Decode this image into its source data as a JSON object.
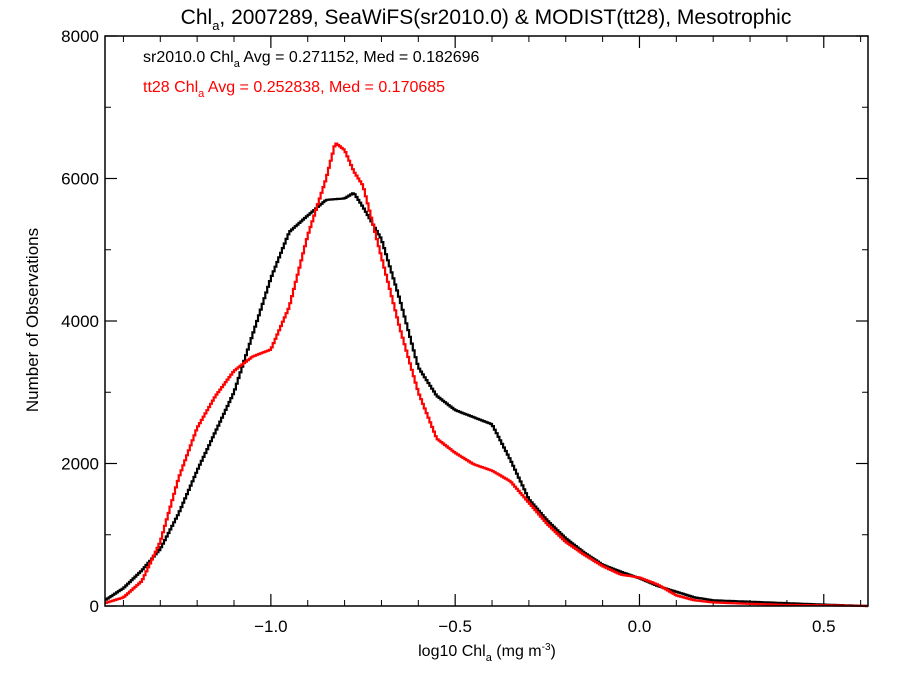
{
  "chart_data": {
    "type": "line",
    "title": {
      "prefix": "Chl",
      "prefix_sub": "a",
      "rest": ", 2007289, SeaWiFS(sr2010.0) & MODIST(tt28), Mesotrophic"
    },
    "xlabel": {
      "prefix": "log10 Chl",
      "sub": "a",
      "mid": " (mg m",
      "sup": "-3",
      "suffix": ")"
    },
    "ylabel": "Number of Observations",
    "xlim": [
      -1.45,
      0.62
    ],
    "ylim": [
      0,
      8000
    ],
    "x_ticks": [
      -1.0,
      -0.5,
      0.0,
      0.5
    ],
    "x_tick_labels": [
      "−1.0",
      "−0.5",
      "0.0",
      "0.5"
    ],
    "y_ticks": [
      0,
      2000,
      4000,
      6000,
      8000
    ],
    "y_tick_labels": [
      "0",
      "2000",
      "4000",
      "6000",
      "8000"
    ],
    "annotations": [
      {
        "prefix": "sr2010.0 Chl",
        "sub": "a",
        "rest": " Avg = 0.271152, Med = 0.182696",
        "color": "#000000"
      },
      {
        "prefix": "tt28 Chl",
        "sub": "a",
        "rest": " Avg = 0.252838, Med = 0.170685",
        "color": "#ff0000"
      }
    ],
    "series": [
      {
        "color": "#000000",
        "x": [
          -1.45,
          -1.4,
          -1.35,
          -1.3,
          -1.25,
          -1.2,
          -1.15,
          -1.1,
          -1.05,
          -1.0,
          -0.95,
          -0.9,
          -0.85,
          -0.8,
          -0.775,
          -0.75,
          -0.7,
          -0.65,
          -0.6,
          -0.55,
          -0.5,
          -0.45,
          -0.4,
          -0.35,
          -0.3,
          -0.25,
          -0.2,
          -0.15,
          -0.1,
          -0.05,
          0.0,
          0.05,
          0.1,
          0.15,
          0.2,
          0.3,
          0.4,
          0.5,
          0.62
        ],
        "y": [
          80,
          250,
          500,
          800,
          1300,
          1900,
          2450,
          3000,
          3800,
          4600,
          5250,
          5480,
          5700,
          5720,
          5800,
          5600,
          5150,
          4300,
          3350,
          2950,
          2750,
          2650,
          2550,
          2050,
          1500,
          1200,
          950,
          750,
          580,
          480,
          390,
          280,
          200,
          120,
          80,
          60,
          40,
          20,
          0
        ]
      },
      {
        "color": "#ff0000",
        "x": [
          -1.45,
          -1.4,
          -1.35,
          -1.3,
          -1.25,
          -1.2,
          -1.15,
          -1.1,
          -1.05,
          -1.0,
          -0.95,
          -0.9,
          -0.85,
          -0.825,
          -0.8,
          -0.775,
          -0.75,
          -0.7,
          -0.65,
          -0.6,
          -0.55,
          -0.5,
          -0.45,
          -0.4,
          -0.35,
          -0.3,
          -0.25,
          -0.2,
          -0.15,
          -0.1,
          -0.05,
          0.0,
          0.05,
          0.1,
          0.15,
          0.2,
          0.3,
          0.4,
          0.5,
          0.62
        ],
        "y": [
          40,
          120,
          350,
          900,
          1800,
          2500,
          2950,
          3300,
          3500,
          3600,
          4200,
          5200,
          6000,
          6500,
          6400,
          6100,
          5900,
          4900,
          3900,
          3000,
          2350,
          2150,
          1990,
          1900,
          1750,
          1450,
          1150,
          900,
          720,
          560,
          440,
          400,
          300,
          150,
          80,
          50,
          30,
          15,
          10,
          0
        ]
      }
    ]
  }
}
